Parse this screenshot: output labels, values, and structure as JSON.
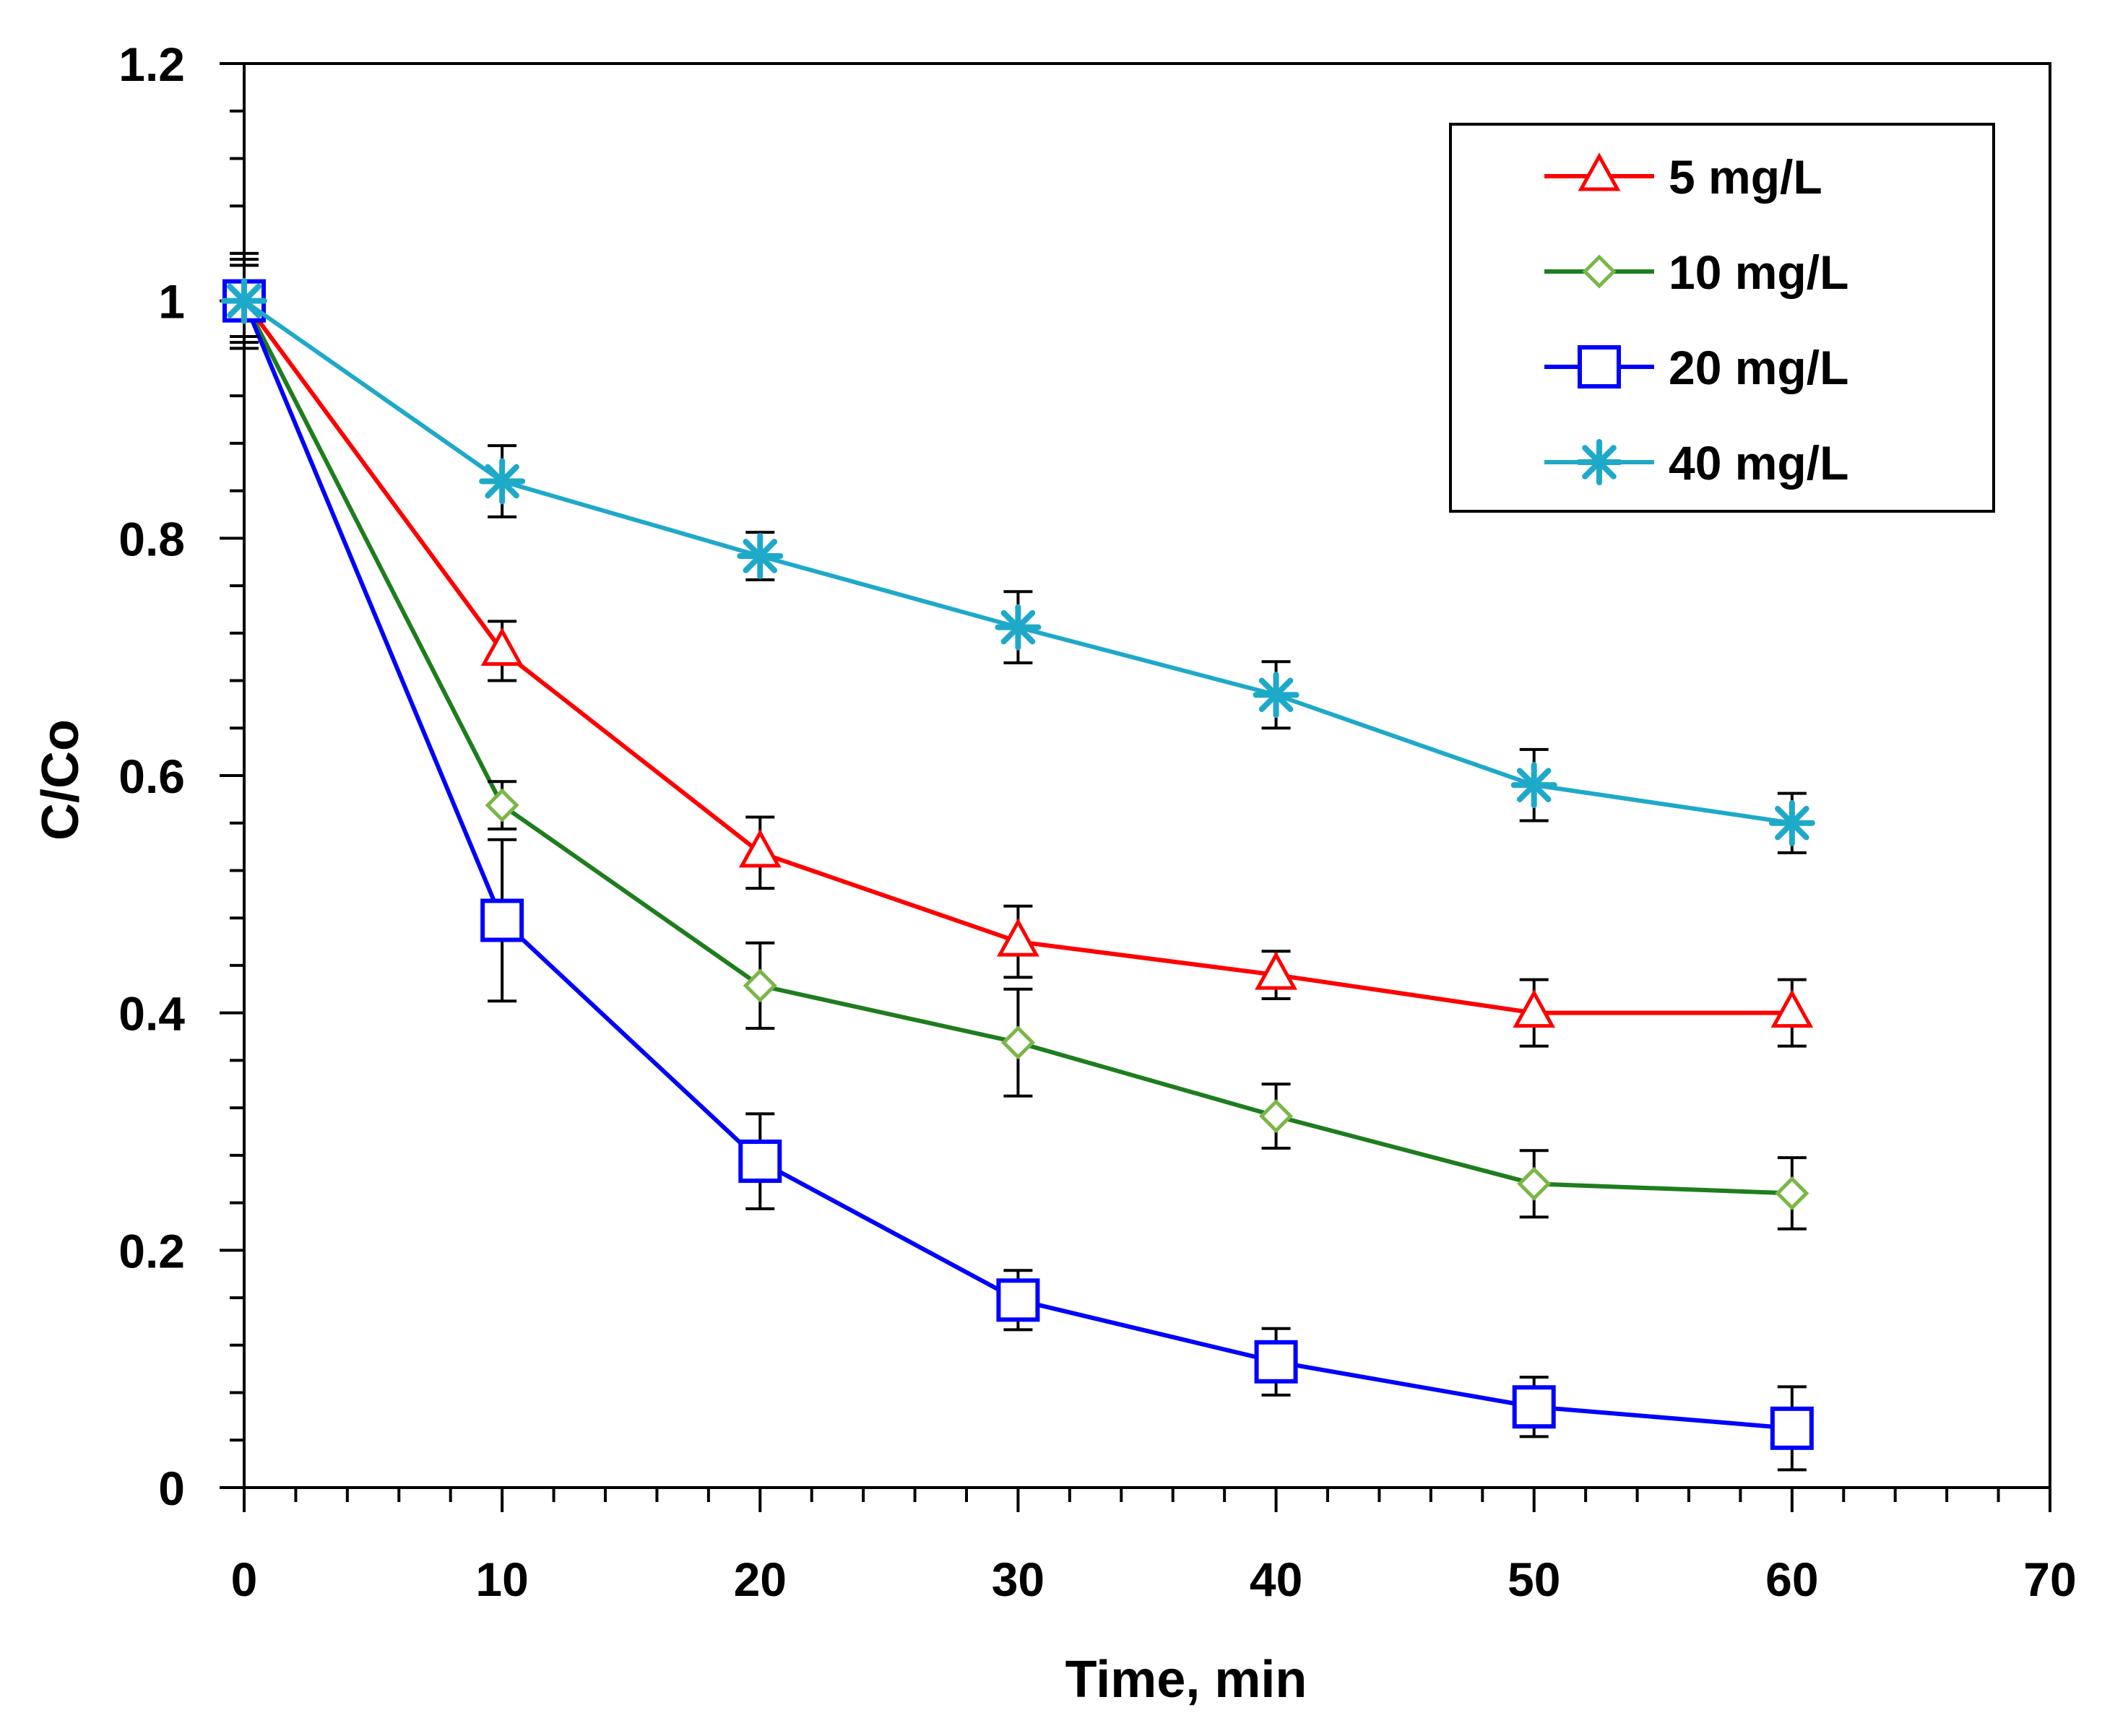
{
  "chart_data": {
    "type": "line",
    "title": "",
    "xlabel": "Time, min",
    "ylabel": "C/Co",
    "xlim": [
      0,
      70
    ],
    "ylim": [
      0,
      1.2
    ],
    "x_ticks": [
      0,
      10,
      20,
      30,
      40,
      50,
      60,
      70
    ],
    "y_ticks": [
      0,
      0.2,
      0.4,
      0.6,
      0.8,
      1,
      1.2
    ],
    "x_tick_labels": [
      "0",
      "10",
      "20",
      "30",
      "40",
      "50",
      "60",
      "70"
    ],
    "y_tick_labels": [
      "0",
      "0.2",
      "0.4",
      "0.6",
      "0.8",
      "1",
      "1.2"
    ],
    "grid": false,
    "legend_position": "top-right",
    "x": [
      0,
      10,
      20,
      30,
      40,
      50,
      60
    ],
    "series": [
      {
        "name": "5 mg/L",
        "color": "#ff0000",
        "marker": "triangle",
        "values": [
          1.0,
          0.705,
          0.535,
          0.46,
          0.432,
          0.4,
          0.4
        ],
        "errors": [
          0.04,
          0.025,
          0.03,
          0.03,
          0.02,
          0.028,
          0.028
        ]
      },
      {
        "name": "10 mg/L",
        "color": "#1e7d1e",
        "marker": "diamond",
        "marker_color": "#7ab648",
        "values": [
          1.0,
          0.575,
          0.423,
          0.375,
          0.313,
          0.256,
          0.248
        ],
        "errors": [
          0.03,
          0.02,
          0.036,
          0.045,
          0.027,
          0.028,
          0.03
        ]
      },
      {
        "name": "20 mg/L",
        "color": "#0000ff",
        "marker": "square",
        "values": [
          1.0,
          0.478,
          0.275,
          0.158,
          0.106,
          0.068,
          0.05
        ],
        "errors": [
          0.035,
          0.068,
          0.04,
          0.025,
          0.028,
          0.025,
          0.035
        ]
      },
      {
        "name": "40 mg/L",
        "color": "#1fa9c9",
        "marker": "star",
        "values": [
          1.0,
          0.848,
          0.785,
          0.725,
          0.668,
          0.592,
          0.56
        ],
        "errors": [
          0.03,
          0.03,
          0.02,
          0.03,
          0.028,
          0.03,
          0.025
        ]
      }
    ]
  }
}
